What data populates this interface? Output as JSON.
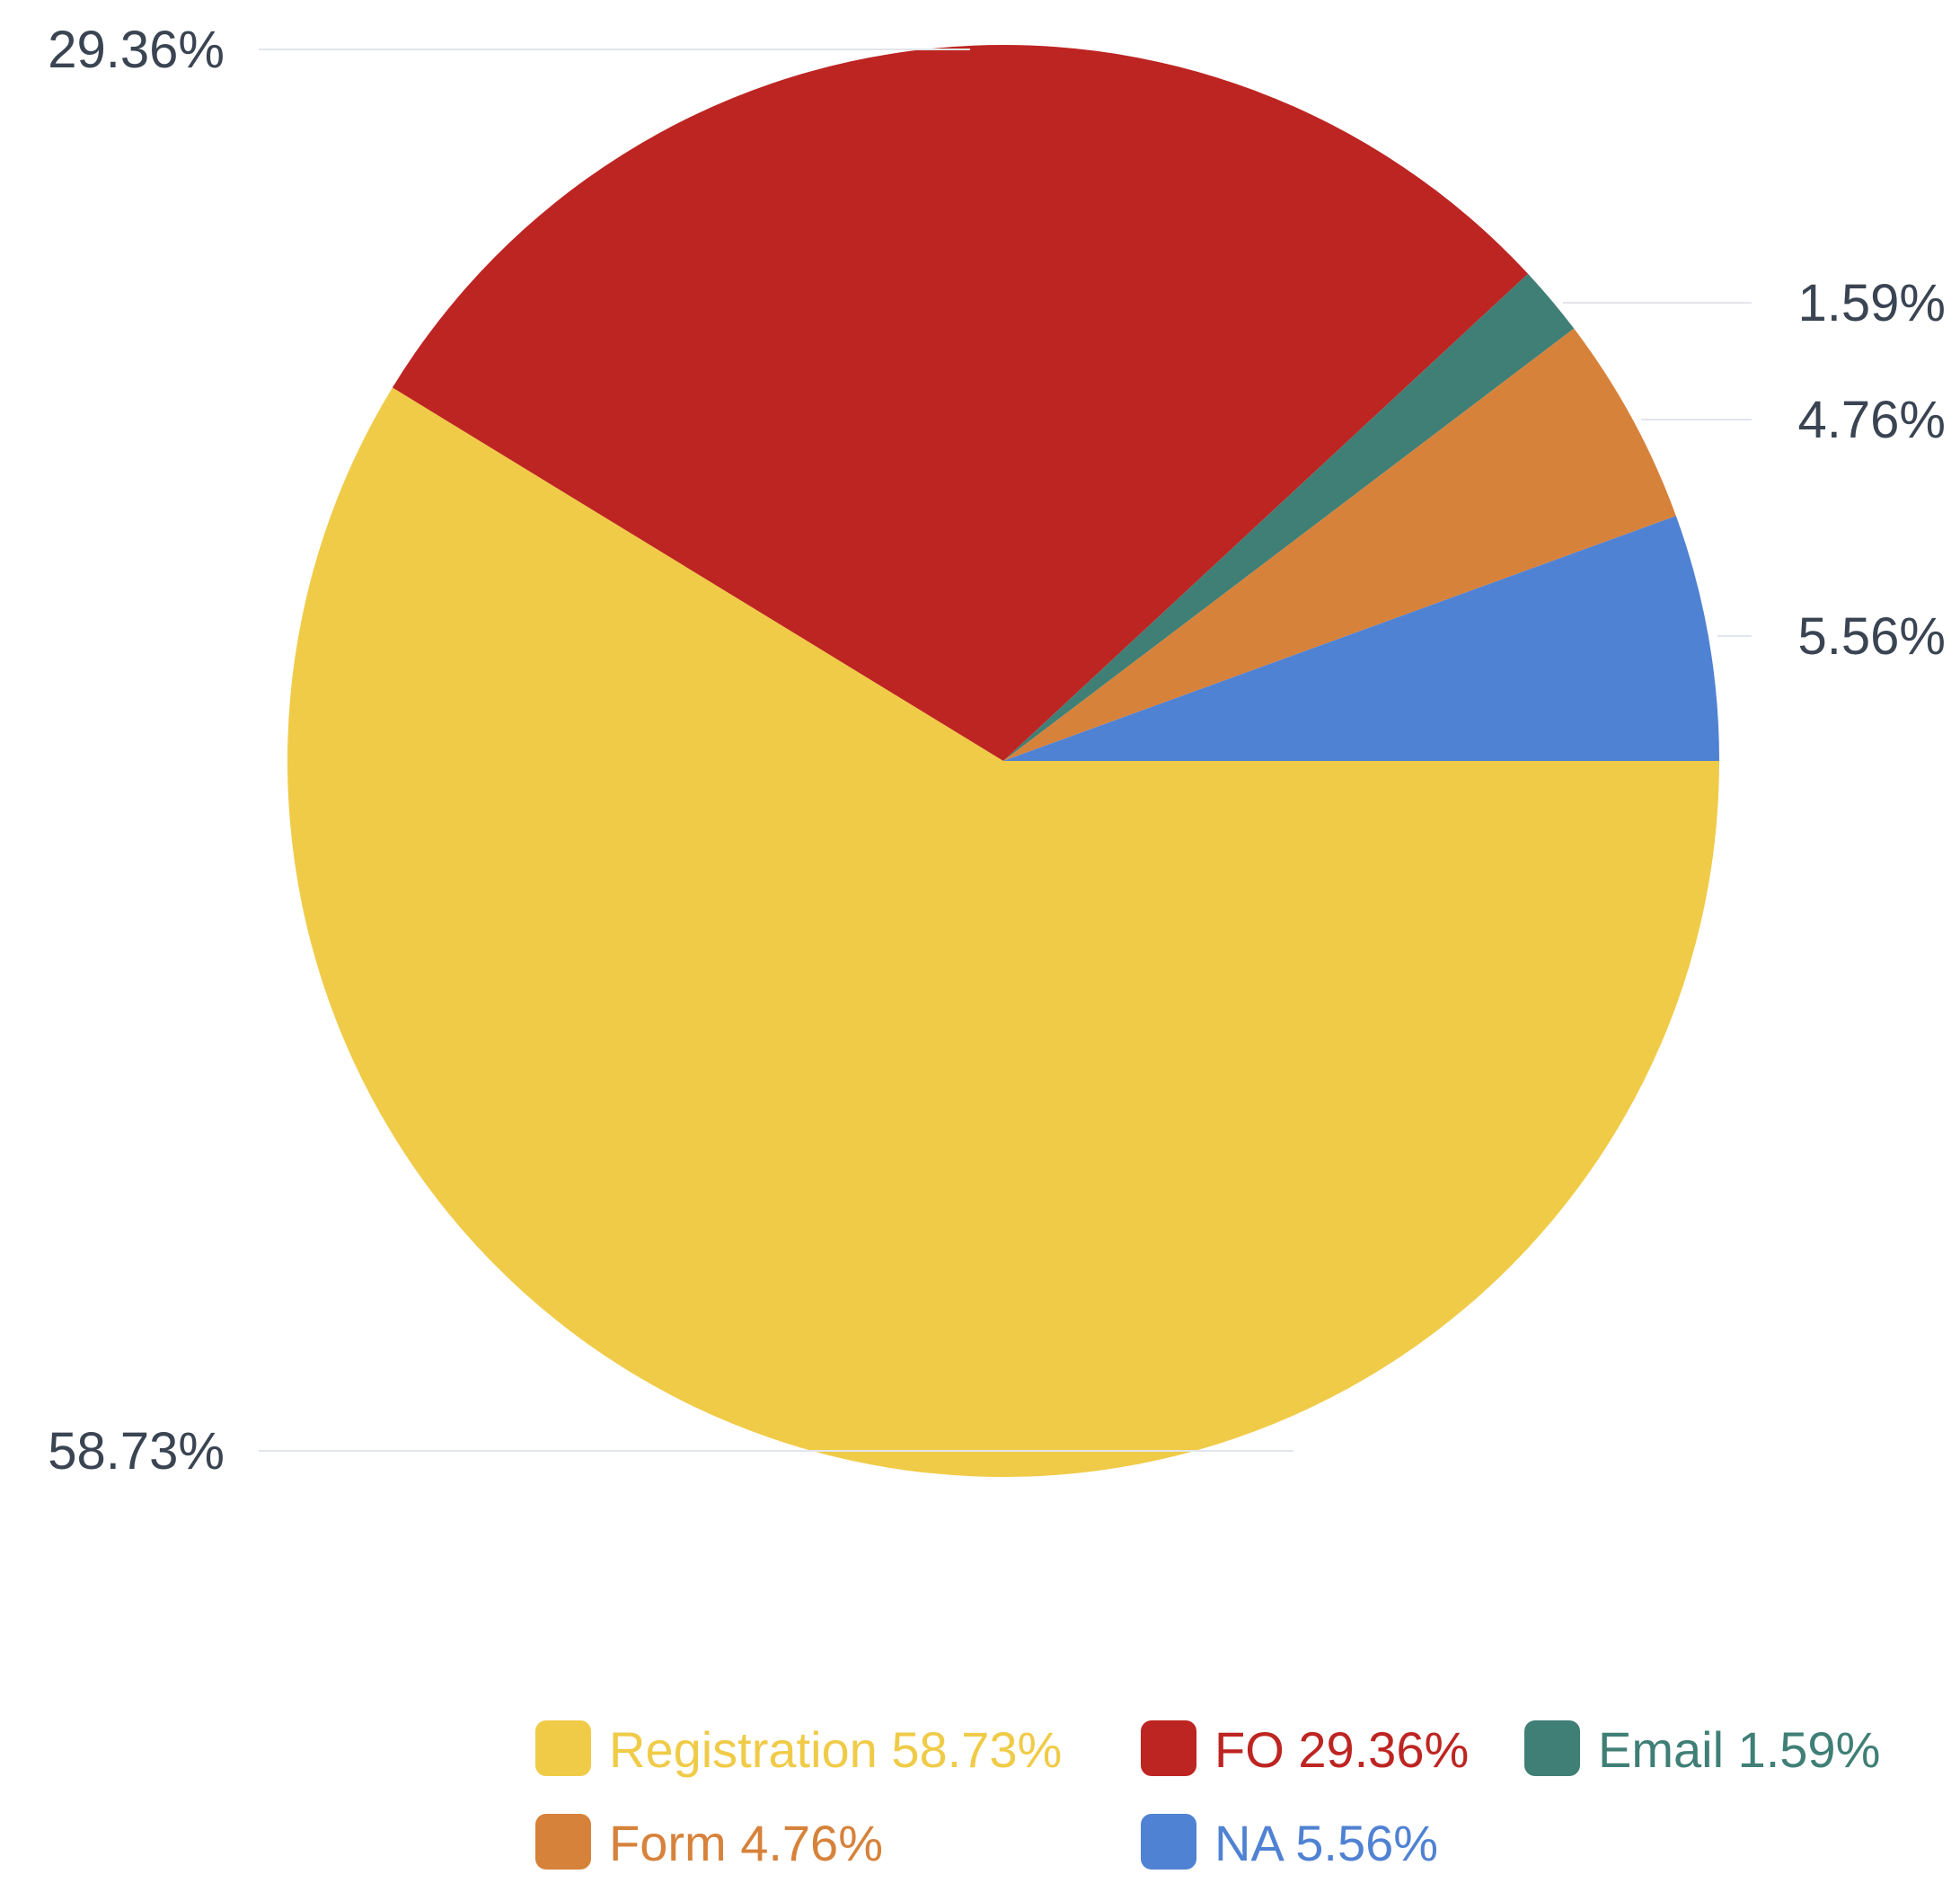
{
  "chart_data": {
    "type": "pie",
    "title": "",
    "slices": [
      {
        "name": "Registration",
        "value": 58.73,
        "label": "58.73%",
        "legend": "Registration 58.73%",
        "color": "#F0CB48"
      },
      {
        "name": "FO",
        "value": 29.36,
        "label": "29.36%",
        "legend": "FO 29.36%",
        "color": "#BD2522"
      },
      {
        "name": "Email",
        "value": 1.59,
        "label": "1.59%",
        "legend": "Email 1.59%",
        "color": "#3F7F76"
      },
      {
        "name": "Form",
        "value": 4.76,
        "label": "4.76%",
        "legend": "Form 4.76%",
        "color": "#D7823B"
      },
      {
        "name": "NA",
        "value": 5.56,
        "label": "5.56%",
        "legend": "NA 5.56%",
        "color": "#5082D3"
      }
    ],
    "start_angle_deg": 0,
    "direction": "clockwise",
    "legend_position": "bottom",
    "label_color": "#3a4452",
    "leader_line_color": "#e2e5ea"
  }
}
